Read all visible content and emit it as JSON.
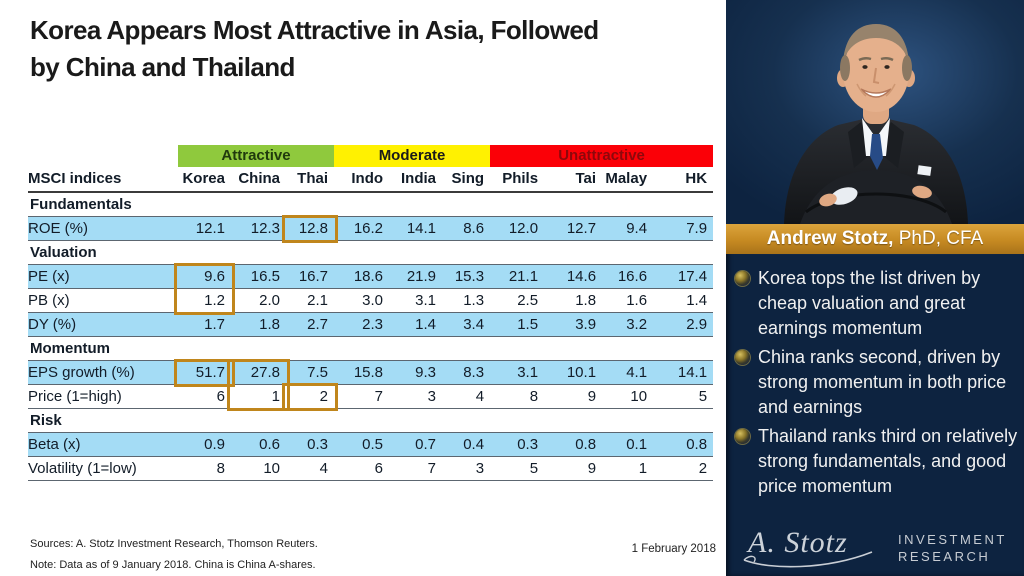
{
  "title": {
    "line1": "Korea Appears Most Attractive in Asia, Followed",
    "line2": "by China and Thailand"
  },
  "table": {
    "header_label": "MSCI indices",
    "countries": [
      "Korea",
      "China",
      "Thai",
      "Indo",
      "India",
      "Sing",
      "Phils",
      "Tai",
      "Malay",
      "HK"
    ],
    "bands": [
      {
        "label": "Attractive",
        "span": 3,
        "bg": "#8FC93D",
        "text_color": "#203A0D"
      },
      {
        "label": "Moderate",
        "span": 3,
        "bg": "#FFF101",
        "text_color": "#1A1A1A"
      },
      {
        "label": "Unattractive",
        "span": 4,
        "bg": "#FB0007",
        "text_color": "#8E070B"
      }
    ],
    "rows": [
      {
        "type": "section",
        "label": "Fundamentals"
      },
      {
        "type": "data",
        "label": "ROE (%)",
        "shaded": true,
        "values": [
          "12.1",
          "12.3",
          "12.8",
          "16.2",
          "14.1",
          "8.6",
          "12.0",
          "12.7",
          "9.4",
          "7.9"
        ]
      },
      {
        "type": "section",
        "label": "Valuation"
      },
      {
        "type": "data",
        "label": "PE (x)",
        "shaded": true,
        "values": [
          "9.6",
          "16.5",
          "16.7",
          "18.6",
          "21.9",
          "15.3",
          "21.1",
          "14.6",
          "16.6",
          "17.4"
        ]
      },
      {
        "type": "data",
        "label": "PB (x)",
        "shaded": false,
        "values": [
          "1.2",
          "2.0",
          "2.1",
          "3.0",
          "3.1",
          "1.3",
          "2.5",
          "1.8",
          "1.6",
          "1.4"
        ]
      },
      {
        "type": "data",
        "label": "DY (%)",
        "shaded": true,
        "values": [
          "1.7",
          "1.8",
          "2.7",
          "2.3",
          "1.4",
          "3.4",
          "1.5",
          "3.9",
          "3.2",
          "2.9"
        ]
      },
      {
        "type": "section",
        "label": "Momentum"
      },
      {
        "type": "data",
        "label": "EPS growth (%)",
        "shaded": true,
        "values": [
          "51.7",
          "27.8",
          "7.5",
          "15.8",
          "9.3",
          "8.3",
          "3.1",
          "10.1",
          "4.1",
          "14.1"
        ]
      },
      {
        "type": "data",
        "label": "Price (1=high)",
        "shaded": false,
        "values": [
          "6",
          "1",
          "2",
          "7",
          "3",
          "4",
          "8",
          "9",
          "10",
          "5"
        ]
      },
      {
        "type": "section",
        "label": "Risk"
      },
      {
        "type": "data",
        "label": "Beta (x)",
        "shaded": true,
        "values": [
          "0.9",
          "0.6",
          "0.3",
          "0.5",
          "0.7",
          "0.4",
          "0.3",
          "0.8",
          "0.1",
          "0.8"
        ]
      },
      {
        "type": "data",
        "label": "Volatility (1=low)",
        "shaded": false,
        "values": [
          "8",
          "10",
          "4",
          "6",
          "7",
          "3",
          "5",
          "9",
          "1",
          "2"
        ]
      }
    ],
    "highlights": [
      {
        "rows": [
          "ROE (%)"
        ],
        "col": "Thai"
      },
      {
        "rows": [
          "PE (x)",
          "PB (x)"
        ],
        "col": "Korea"
      },
      {
        "rows": [
          "EPS growth (%)"
        ],
        "col": "Korea"
      },
      {
        "rows": [
          "EPS growth (%)",
          "Price (1=high)"
        ],
        "col": "China"
      },
      {
        "rows": [
          "Price (1=high)"
        ],
        "col": "Thai"
      }
    ],
    "highlight_color": "#C0861C",
    "shade_color": "#A4DCF5"
  },
  "footer": {
    "sources": "Sources: A. Stotz Investment Research, Thomson Reuters.",
    "note": "Note: Data as of 9 January 2018. China is China A-shares.",
    "date": "1 February 2018"
  },
  "sidebar": {
    "bg_color": "#0D2340",
    "banner_color": "#C68A22",
    "author_bold": "Andrew Stotz,",
    "author_rest": " PhD, CFA",
    "bullet_icon": "sphere-bullet-icon",
    "bullets": [
      "Korea tops the list driven by cheap valuation and great earnings momentum",
      "China ranks second, driven by strong momentum in both price and earnings",
      "Thailand ranks third on relatively strong fundamentals, and good price momentum"
    ],
    "logo_script": "A. Stotz",
    "logo_line1": "INVESTMENT",
    "logo_line2": "RESEARCH"
  }
}
